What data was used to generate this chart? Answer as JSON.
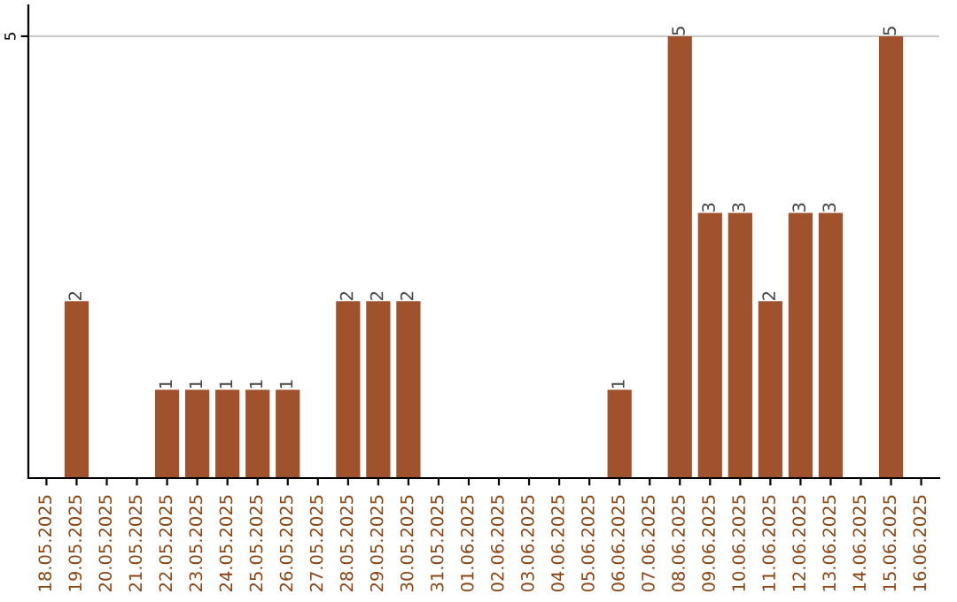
{
  "chart_data": {
    "type": "bar",
    "categories": [
      "18.05.2025",
      "19.05.2025",
      "20.05.2025",
      "21.05.2025",
      "22.05.2025",
      "23.05.2025",
      "24.05.2025",
      "25.05.2025",
      "26.05.2025",
      "27.05.2025",
      "28.05.2025",
      "29.05.2025",
      "30.05.2025",
      "31.05.2025",
      "01.06.2025",
      "02.06.2025",
      "03.06.2025",
      "04.06.2025",
      "05.06.2025",
      "06.06.2025",
      "07.06.2025",
      "08.06.2025",
      "09.06.2025",
      "10.06.2025",
      "11.06.2025",
      "12.06.2025",
      "13.06.2025",
      "14.06.2025",
      "15.06.2025",
      "16.06.2025"
    ],
    "values": [
      0,
      2,
      0,
      0,
      1,
      1,
      1,
      1,
      1,
      0,
      2,
      2,
      2,
      0,
      0,
      0,
      0,
      0,
      0,
      1,
      0,
      5,
      3,
      3,
      2,
      3,
      3,
      0,
      5,
      0
    ],
    "value_labels": [
      null,
      "2",
      null,
      null,
      "1",
      "1",
      "1",
      "1",
      "1",
      null,
      "2",
      "2",
      "2",
      null,
      null,
      null,
      null,
      null,
      null,
      "1",
      null,
      "5",
      "3",
      "3",
      "2",
      "3",
      "3",
      null,
      "5",
      null
    ],
    "color": "#a0522d",
    "ylim": [
      0,
      5.35
    ],
    "yticks": [
      5
    ],
    "grid": "y"
  }
}
